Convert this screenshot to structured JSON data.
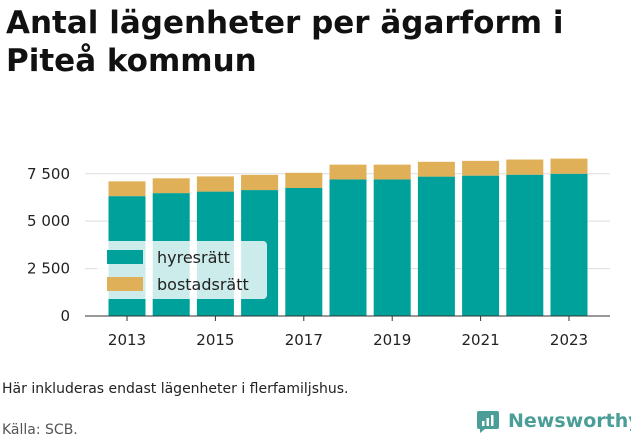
{
  "title": "Antal lägenheter per ägarform i Piteå kommun",
  "note": "Här inkluderas endast lägenheter i flerfamiljshus.",
  "source": "Källa: SCB.",
  "brand": {
    "name": "Newsworthy",
    "icon": "newsworthy-logo-icon"
  },
  "colors": {
    "hyresratt": "#00a19a",
    "bostadsratt": "#dfb057",
    "grid": "#dddddd",
    "brand": "#4a9e97"
  },
  "chart_data": {
    "type": "bar",
    "stacked": true,
    "categories": [
      "2013",
      "2014",
      "2015",
      "2016",
      "2017",
      "2018",
      "2019",
      "2020",
      "2021",
      "2022",
      "2023"
    ],
    "x_tick_labels": [
      "2013",
      "2015",
      "2017",
      "2019",
      "2021",
      "2023"
    ],
    "y_ticks": [
      0,
      2500,
      5000,
      7500
    ],
    "y_tick_labels": [
      "0",
      "2 500",
      "5 000",
      "7 500"
    ],
    "ylim": [
      0,
      8700
    ],
    "grid": true,
    "legend_position": "bottom-left",
    "series": [
      {
        "name": "hyresrätt",
        "values": [
          6320,
          6480,
          6560,
          6640,
          6750,
          7200,
          7200,
          7350,
          7400,
          7450,
          7500
        ]
      },
      {
        "name": "bostadsrätt",
        "values": [
          780,
          780,
          800,
          800,
          800,
          780,
          780,
          780,
          780,
          800,
          800
        ]
      }
    ]
  }
}
